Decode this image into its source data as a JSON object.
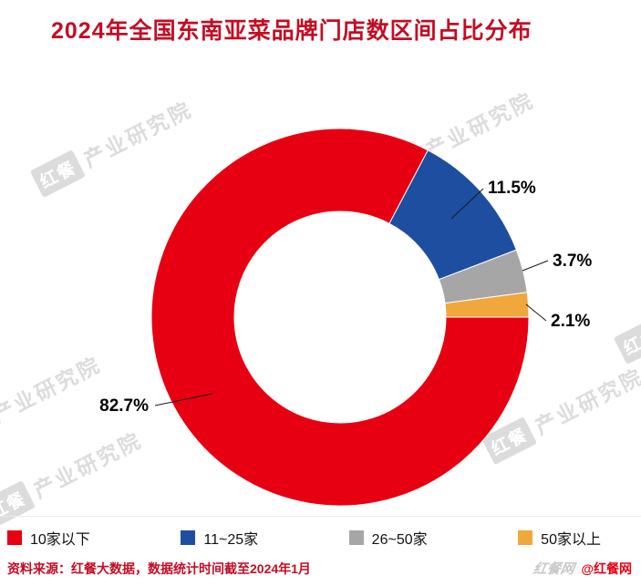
{
  "title": "2024年全国东南亚菜品牌门店数区间占比分布",
  "chart_data": {
    "type": "pie",
    "subtype": "donut",
    "title": "2024年全国东南亚菜品牌门店数区间占比分布",
    "categories": [
      "10家以下",
      "11~25家",
      "26~50家",
      "50家以上"
    ],
    "values": [
      82.7,
      11.5,
      3.7,
      2.1
    ],
    "labels": [
      "82.7%",
      "11.5%",
      "3.7%",
      "2.1%"
    ],
    "colors": [
      "#E60012",
      "#1E4E9F",
      "#A6A6A6",
      "#F0A73C"
    ],
    "unit": "%",
    "start_angle_deg_cw_from_top": 90,
    "direction": "clockwise",
    "inner_radius_ratio": 0.56,
    "legend_position": "bottom"
  },
  "legend": {
    "items": [
      "10家以下",
      "11~25家",
      "26~50家",
      "50家以上"
    ]
  },
  "footer": {
    "source": "资料来源：红餐大数据，数据统计时间截至2024年1月",
    "brand_mark": "红餐网",
    "brand_handle": "@红餐网"
  },
  "watermark": {
    "logo": "红餐",
    "text": "产业研究院"
  }
}
